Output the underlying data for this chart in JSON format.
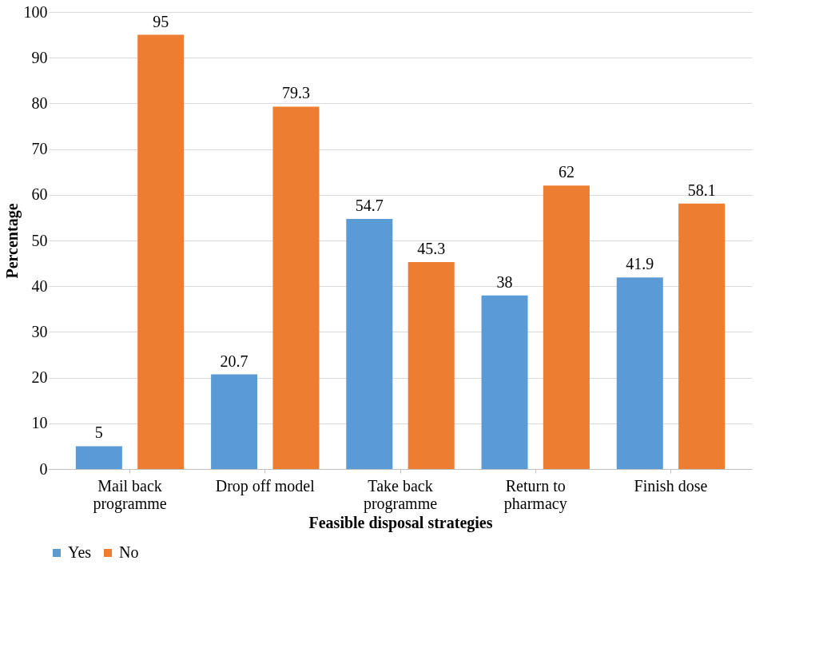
{
  "chart_data": {
    "type": "bar",
    "xlabel": "Feasible disposal strategies",
    "ylabel": "Percentage",
    "categories": [
      "Mail back programme",
      "Drop off model",
      "Take back programme",
      "Return to pharmacy",
      "Finish dose"
    ],
    "series": [
      {
        "name": "Yes",
        "color": "#5b9bd5",
        "values": [
          5,
          20.7,
          54.7,
          38,
          41.9
        ]
      },
      {
        "name": "No",
        "color": "#ed7d31",
        "values": [
          95,
          79.3,
          45.3,
          62,
          58.1
        ]
      }
    ],
    "ylim": [
      0,
      100
    ],
    "yticks": [
      0,
      10,
      20,
      30,
      40,
      50,
      60,
      70,
      80,
      90,
      100
    ],
    "grid": "y",
    "legend": "bottom",
    "data_labels": true
  }
}
